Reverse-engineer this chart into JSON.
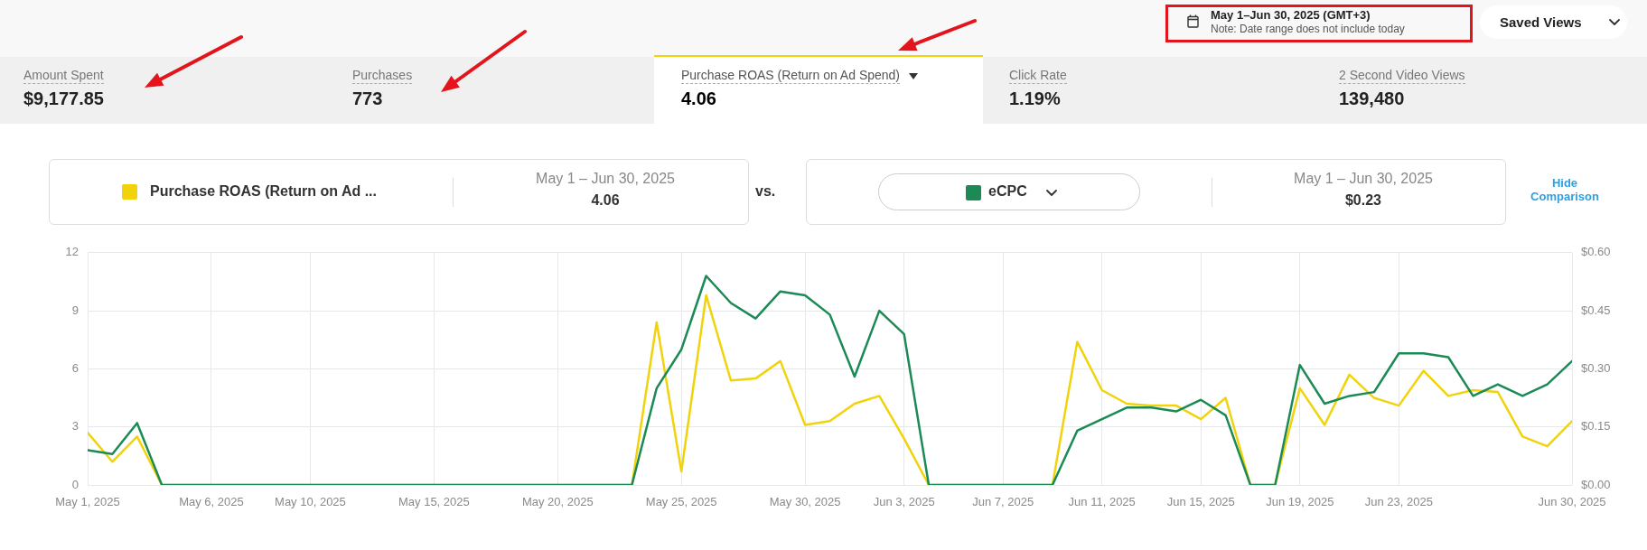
{
  "chart_data": [
    {
      "type": "other",
      "annotations": [
        "May 1–Jun 30, 2025 (GMT+3)",
        "Note: Date range does not include today",
        "Saved Views",
        "Amount Spent",
        "$9,177.85",
        "Purchases",
        "773",
        "Purchase ROAS (Return on Ad Spend)",
        "4.06",
        "Click Rate",
        "1.19%",
        "2 Second Video Views",
        "139,480"
      ]
    },
    {
      "type": "line",
      "x": [
        "2025-05-01",
        "2025-05-02",
        "2025-05-03",
        "2025-05-04",
        "2025-05-05",
        "2025-05-06",
        "2025-05-07",
        "2025-05-08",
        "2025-05-09",
        "2025-05-10",
        "2025-05-11",
        "2025-05-12",
        "2025-05-13",
        "2025-05-14",
        "2025-05-15",
        "2025-05-16",
        "2025-05-17",
        "2025-05-18",
        "2025-05-19",
        "2025-05-20",
        "2025-05-21",
        "2025-05-22",
        "2025-05-23",
        "2025-05-24",
        "2025-05-25",
        "2025-05-26",
        "2025-05-27",
        "2025-05-28",
        "2025-05-29",
        "2025-05-30",
        "2025-05-31",
        "2025-06-01",
        "2025-06-02",
        "2025-06-03",
        "2025-06-04",
        "2025-06-05",
        "2025-06-06",
        "2025-06-07",
        "2025-06-08",
        "2025-06-09",
        "2025-06-10",
        "2025-06-11",
        "2025-06-12",
        "2025-06-13",
        "2025-06-14",
        "2025-06-15",
        "2025-06-16",
        "2025-06-17",
        "2025-06-18",
        "2025-06-19",
        "2025-06-20",
        "2025-06-21",
        "2025-06-22",
        "2025-06-23",
        "2025-06-24",
        "2025-06-25",
        "2025-06-26",
        "2025-06-27",
        "2025-06-28",
        "2025-06-29",
        "2025-06-30"
      ],
      "xlim": [
        "2025-05-01",
        "2025-06-30"
      ],
      "xticks": [
        {
          "value": "2025-05-01",
          "label": "May 1, 2025"
        },
        {
          "value": "2025-05-06",
          "label": "May 6, 2025"
        },
        {
          "value": "2025-05-10",
          "label": "May 10, 2025"
        },
        {
          "value": "2025-05-15",
          "label": "May 15, 2025"
        },
        {
          "value": "2025-05-20",
          "label": "May 20, 2025"
        },
        {
          "value": "2025-05-25",
          "label": "May 25, 2025"
        },
        {
          "value": "2025-05-30",
          "label": "May 30, 2025"
        },
        {
          "value": "2025-06-03",
          "label": "Jun 3, 2025"
        },
        {
          "value": "2025-06-07",
          "label": "Jun 7, 2025"
        },
        {
          "value": "2025-06-11",
          "label": "Jun 11, 2025"
        },
        {
          "value": "2025-06-15",
          "label": "Jun 15, 2025"
        },
        {
          "value": "2025-06-19",
          "label": "Jun 19, 2025"
        },
        {
          "value": "2025-06-23",
          "label": "Jun 23, 2025"
        },
        {
          "value": "2025-06-30",
          "label": "Jun 30, 2025"
        }
      ],
      "ylim": [
        0,
        12
      ],
      "yticks": [
        0,
        3,
        6,
        9,
        12
      ],
      "y2lim": [
        0,
        0.6
      ],
      "y2ticks": [
        {
          "value": 0,
          "label": "$0.00"
        },
        {
          "value": 0.15,
          "label": "$0.15"
        },
        {
          "value": 0.3,
          "label": "$0.30"
        },
        {
          "value": 0.45,
          "label": "$0.45"
        },
        {
          "value": 0.6,
          "label": "$0.60"
        }
      ],
      "series": [
        {
          "name": "Purchase ROAS (Return on Ad ...",
          "color": "#f1d30c",
          "values": [
            2.7,
            1.2,
            2.5,
            0,
            0,
            0,
            0,
            0,
            0,
            0,
            0,
            0,
            0,
            0,
            0,
            0,
            0,
            0,
            0,
            0,
            0,
            0,
            0,
            8.4,
            0.7,
            9.8,
            5.4,
            5.5,
            6.4,
            3.1,
            3.3,
            4.2,
            4.6,
            2.4,
            0,
            0,
            0,
            0,
            0,
            0,
            7.4,
            4.9,
            4.2,
            4.1,
            4.1,
            3.4,
            4.5,
            0,
            0,
            5.0,
            3.1,
            5.7,
            4.5,
            4.1,
            5.9,
            4.6,
            4.9,
            4.8,
            2.5,
            2.0,
            3.3
          ]
        },
        {
          "name": "eCPC",
          "color": "#1b8a55",
          "axis": "y2",
          "values": [
            0.09,
            0.08,
            0.16,
            0,
            0,
            0,
            0,
            0,
            0,
            0,
            0,
            0,
            0,
            0,
            0,
            0,
            0,
            0,
            0,
            0,
            0,
            0,
            0,
            0.25,
            0.35,
            0.54,
            0.47,
            0.43,
            0.5,
            0.49,
            0.44,
            0.28,
            0.45,
            0.39,
            0,
            0,
            0,
            0,
            0,
            0,
            0.14,
            0.17,
            0.2,
            0.2,
            0.19,
            0.22,
            0.18,
            0,
            0,
            0.31,
            0.21,
            0.23,
            0.24,
            0.34,
            0.34,
            0.33,
            0.23,
            0.26,
            0.23,
            0.26,
            0.32
          ]
        }
      ],
      "grid": true,
      "legend": "top",
      "marker": "none",
      "annotations": [
        "May 1 – Jun 30, 2025",
        "4.06",
        "vs.",
        "May 1 – Jun 30, 2025",
        "$0.23",
        "Hide Comparison"
      ]
    }
  ]
}
